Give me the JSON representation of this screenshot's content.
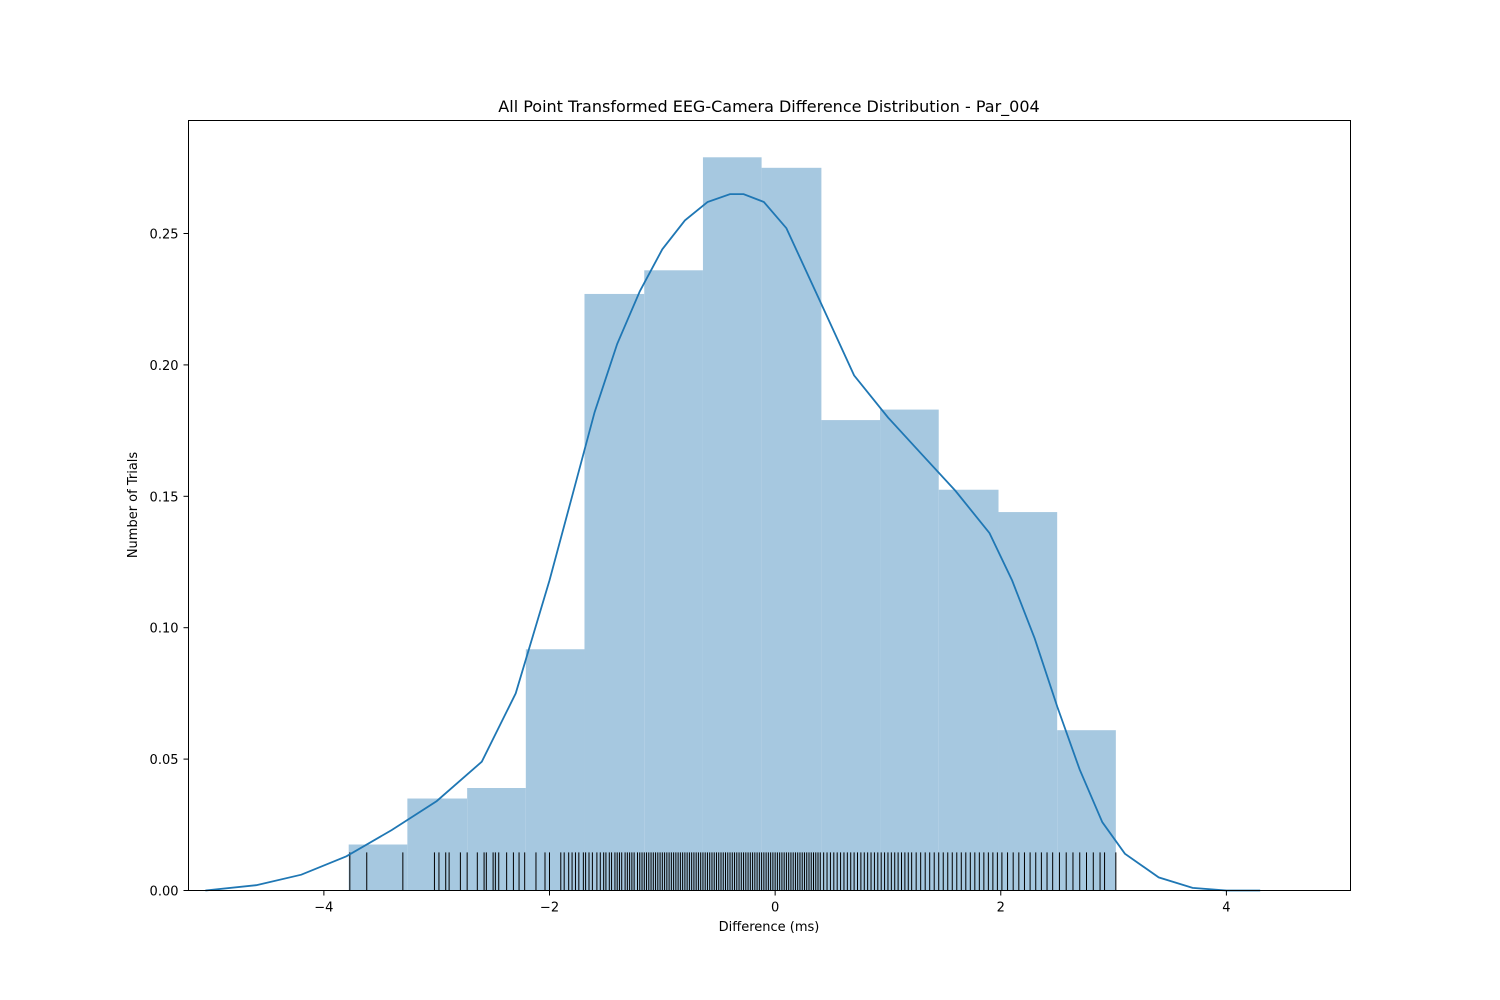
{
  "chart_data": {
    "type": "histogram",
    "title": "All Point Transformed EEG-Camera Difference Distribution - Par_004",
    "xlabel": "Difference (ms)",
    "ylabel": "Number of Trials",
    "xlim": [
      -5.2,
      5.1
    ],
    "ylim": [
      0,
      0.293
    ],
    "xticks": [
      -4,
      -2,
      0,
      2,
      4
    ],
    "xtick_labels": [
      "−4",
      "−2",
      "0",
      "2",
      "4"
    ],
    "yticks": [
      0.0,
      0.05,
      0.1,
      0.15,
      0.2,
      0.25
    ],
    "ytick_labels": [
      "0.00",
      "0.05",
      "0.10",
      "0.15",
      "0.20",
      "0.25"
    ],
    "bins": [
      {
        "x0": -3.78,
        "x1": -3.26,
        "value": 0.0175
      },
      {
        "x0": -3.26,
        "x1": -2.73,
        "value": 0.035
      },
      {
        "x0": -2.73,
        "x1": -2.21,
        "value": 0.039
      },
      {
        "x0": -2.21,
        "x1": -1.69,
        "value": 0.0918
      },
      {
        "x0": -1.69,
        "x1": -1.16,
        "value": 0.227
      },
      {
        "x0": -1.16,
        "x1": -0.64,
        "value": 0.236
      },
      {
        "x0": -0.64,
        "x1": -0.12,
        "value": 0.279
      },
      {
        "x0": -0.12,
        "x1": 0.41,
        "value": 0.275
      },
      {
        "x0": 0.41,
        "x1": 0.93,
        "value": 0.179
      },
      {
        "x0": 0.93,
        "x1": 1.45,
        "value": 0.183
      },
      {
        "x0": 1.45,
        "x1": 1.98,
        "value": 0.1525
      },
      {
        "x0": 1.98,
        "x1": 2.5,
        "value": 0.144
      },
      {
        "x0": 2.5,
        "x1": 3.02,
        "value": 0.061
      }
    ],
    "kde": {
      "x": [
        -5.05,
        -4.6,
        -4.2,
        -3.8,
        -3.4,
        -3.0,
        -2.6,
        -2.3,
        -2.0,
        -1.8,
        -1.6,
        -1.4,
        -1.2,
        -1.0,
        -0.8,
        -0.6,
        -0.4,
        -0.28,
        -0.1,
        0.1,
        0.4,
        0.7,
        1.0,
        1.3,
        1.6,
        1.9,
        2.1,
        2.3,
        2.5,
        2.7,
        2.9,
        3.1,
        3.4,
        3.7,
        4.0,
        4.3
      ],
      "y": [
        0.0,
        0.002,
        0.006,
        0.013,
        0.023,
        0.034,
        0.049,
        0.075,
        0.118,
        0.15,
        0.182,
        0.208,
        0.228,
        0.244,
        0.255,
        0.262,
        0.265,
        0.265,
        0.262,
        0.252,
        0.224,
        0.196,
        0.18,
        0.166,
        0.152,
        0.136,
        0.118,
        0.096,
        0.07,
        0.046,
        0.026,
        0.014,
        0.005,
        0.001,
        0.0,
        0.0
      ],
      "color": "#1f77b4"
    },
    "rug": [
      -3.77,
      -3.62,
      -3.3,
      -3.02,
      -2.98,
      -2.92,
      -2.89,
      -2.79,
      -2.73,
      -2.64,
      -2.58,
      -2.56,
      -2.5,
      -2.48,
      -2.45,
      -2.38,
      -2.32,
      -2.27,
      -2.22,
      -2.12,
      -2.04,
      -2.0,
      -1.9,
      -1.87,
      -1.83,
      -1.8,
      -1.77,
      -1.74,
      -1.7,
      -1.68,
      -1.65,
      -1.62,
      -1.58,
      -1.55,
      -1.52,
      -1.5,
      -1.47,
      -1.45,
      -1.42,
      -1.4,
      -1.38,
      -1.36,
      -1.33,
      -1.31,
      -1.29,
      -1.27,
      -1.25,
      -1.22,
      -1.2,
      -1.18,
      -1.16,
      -1.14,
      -1.12,
      -1.1,
      -1.08,
      -1.06,
      -1.04,
      -1.02,
      -1.0,
      -0.98,
      -0.96,
      -0.94,
      -0.92,
      -0.9,
      -0.88,
      -0.86,
      -0.84,
      -0.82,
      -0.8,
      -0.78,
      -0.76,
      -0.74,
      -0.72,
      -0.7,
      -0.68,
      -0.66,
      -0.64,
      -0.62,
      -0.6,
      -0.58,
      -0.56,
      -0.54,
      -0.52,
      -0.5,
      -0.48,
      -0.46,
      -0.44,
      -0.42,
      -0.4,
      -0.38,
      -0.36,
      -0.34,
      -0.32,
      -0.3,
      -0.28,
      -0.26,
      -0.24,
      -0.22,
      -0.2,
      -0.18,
      -0.16,
      -0.14,
      -0.12,
      -0.1,
      -0.08,
      -0.06,
      -0.04,
      -0.02,
      0.0,
      0.02,
      0.04,
      0.06,
      0.08,
      0.1,
      0.12,
      0.14,
      0.16,
      0.18,
      0.2,
      0.22,
      0.24,
      0.26,
      0.28,
      0.3,
      0.32,
      0.34,
      0.36,
      0.38,
      0.4,
      0.43,
      0.46,
      0.49,
      0.52,
      0.55,
      0.58,
      0.61,
      0.64,
      0.67,
      0.7,
      0.73,
      0.76,
      0.79,
      0.82,
      0.85,
      0.88,
      0.91,
      0.94,
      0.97,
      1.0,
      1.03,
      1.06,
      1.09,
      1.12,
      1.15,
      1.18,
      1.21,
      1.25,
      1.29,
      1.33,
      1.37,
      1.41,
      1.45,
      1.49,
      1.53,
      1.57,
      1.61,
      1.65,
      1.69,
      1.73,
      1.77,
      1.81,
      1.85,
      1.89,
      1.93,
      1.97,
      2.01,
      2.06,
      2.11,
      2.16,
      2.21,
      2.26,
      2.31,
      2.36,
      2.41,
      2.46,
      2.52,
      2.58,
      2.64,
      2.7,
      2.76,
      2.82,
      2.88,
      2.92,
      3.02
    ],
    "bar_color": "#a6c8e0",
    "line_color": "#1f77b4"
  }
}
